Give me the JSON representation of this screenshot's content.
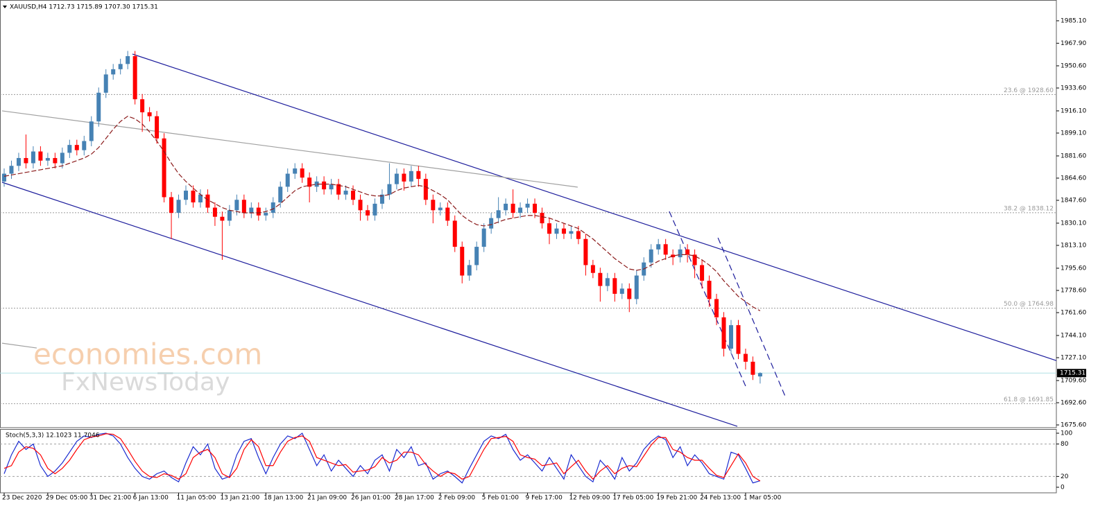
{
  "chart_data": {
    "type": "candlestick",
    "title": "XAUUSD,H4  1712.73 1715.89 1707.30 1715.31",
    "categories": [
      "23 Dec 2020",
      null,
      null,
      null,
      null,
      null,
      "29 Dec 05:00",
      null,
      null,
      null,
      null,
      null,
      "31 Dec 21:00",
      null,
      null,
      null,
      null,
      null,
      "6 Jan 13:00",
      null,
      null,
      null,
      null,
      null,
      "11 Jan 05:00",
      null,
      null,
      null,
      null,
      null,
      "13 Jan 21:00",
      null,
      null,
      null,
      null,
      null,
      "18 Jan 13:00",
      null,
      null,
      null,
      null,
      null,
      "21 Jan 09:00",
      null,
      null,
      null,
      null,
      null,
      "26 Jan 01:00",
      null,
      null,
      null,
      null,
      null,
      "28 Jan 17:00",
      null,
      null,
      null,
      null,
      null,
      "2 Feb 09:00",
      null,
      null,
      null,
      null,
      null,
      "5 Feb 01:00",
      null,
      null,
      null,
      null,
      null,
      "9 Feb 17:00",
      null,
      null,
      null,
      null,
      null,
      "12 Feb 09:00",
      null,
      null,
      null,
      null,
      null,
      "17 Feb 05:00",
      null,
      null,
      null,
      null,
      null,
      "19 Feb 21:00",
      null,
      null,
      null,
      null,
      null,
      "24 Feb 13:00",
      null,
      null,
      null,
      null,
      null,
      "1 Mar 05:00",
      null,
      null
    ],
    "open": [
      1862,
      1868,
      1874,
      1880,
      1876,
      1885,
      1878,
      1880,
      1876,
      1884,
      1890,
      1886,
      1893,
      1908,
      1930,
      1944,
      1948,
      1952,
      1958,
      1925,
      1915,
      1912,
      1895,
      1850,
      1838,
      1848,
      1855,
      1846,
      1852,
      1842,
      1835,
      1832,
      1840,
      1848,
      1838,
      1842,
      1836,
      1838,
      1846,
      1858,
      1868,
      1872,
      1865,
      1858,
      1862,
      1856,
      1860,
      1852,
      1855,
      1848,
      1840,
      1836,
      1845,
      1852,
      1860,
      1868,
      1862,
      1870,
      1864,
      1848,
      1840,
      1842,
      1832,
      1812,
      1790,
      1798,
      1812,
      1826,
      1834,
      1840,
      1845,
      1838,
      1842,
      1845,
      1838,
      1830,
      1822,
      1826,
      1822,
      1824,
      1818,
      1798,
      1792,
      1782,
      1788,
      1776,
      1780,
      1772,
      1790,
      1800,
      1810,
      1814,
      1806,
      1804,
      1810,
      1806,
      1798,
      1786,
      1772,
      1758,
      1734,
      1752,
      1730,
      1724,
      1712.73
    ],
    "high": [
      1872,
      1878,
      1884,
      1898,
      1889,
      1889,
      1884,
      1884,
      1888,
      1894,
      1894,
      1897,
      1912,
      1934,
      1948,
      1952,
      1956,
      1962,
      1962,
      1929,
      1919,
      1916,
      1899,
      1854,
      1852,
      1859,
      1859,
      1856,
      1856,
      1846,
      1839,
      1844,
      1852,
      1852,
      1846,
      1846,
      1842,
      1850,
      1862,
      1872,
      1876,
      1876,
      1869,
      1866,
      1866,
      1864,
      1864,
      1859,
      1859,
      1852,
      1844,
      1849,
      1856,
      1876,
      1872,
      1872,
      1874,
      1874,
      1868,
      1852,
      1846,
      1846,
      1836,
      1816,
      1802,
      1816,
      1830,
      1838,
      1850,
      1849,
      1856,
      1846,
      1849,
      1849,
      1842,
      1834,
      1830,
      1830,
      1828,
      1828,
      1822,
      1802,
      1796,
      1792,
      1792,
      1784,
      1784,
      1794,
      1804,
      1814,
      1818,
      1818,
      1810,
      1814,
      1814,
      1810,
      1802,
      1790,
      1776,
      1762,
      1756,
      1756,
      1734,
      1728,
      1715.89
    ],
    "low": [
      1858,
      1864,
      1870,
      1872,
      1872,
      1874,
      1874,
      1872,
      1872,
      1880,
      1882,
      1882,
      1889,
      1904,
      1926,
      1940,
      1944,
      1948,
      1921,
      1900,
      1908,
      1891,
      1846,
      1818,
      1834,
      1844,
      1842,
      1842,
      1838,
      1828,
      1802,
      1828,
      1836,
      1834,
      1834,
      1832,
      1832,
      1834,
      1842,
      1854,
      1864,
      1861,
      1846,
      1854,
      1852,
      1852,
      1848,
      1848,
      1844,
      1832,
      1832,
      1832,
      1841,
      1848,
      1856,
      1855,
      1858,
      1858,
      1844,
      1830,
      1836,
      1828,
      1808,
      1784,
      1786,
      1794,
      1808,
      1822,
      1830,
      1836,
      1834,
      1834,
      1838,
      1834,
      1826,
      1814,
      1818,
      1818,
      1818,
      1814,
      1790,
      1788,
      1770,
      1778,
      1770,
      1772,
      1762,
      1768,
      1786,
      1796,
      1806,
      1802,
      1798,
      1800,
      1800,
      1788,
      1780,
      1766,
      1752,
      1728,
      1730,
      1726,
      1718,
      1710,
      1707.3
    ],
    "close": [
      1868,
      1874,
      1880,
      1876,
      1885,
      1878,
      1880,
      1876,
      1884,
      1890,
      1886,
      1893,
      1908,
      1930,
      1944,
      1948,
      1952,
      1958,
      1925,
      1915,
      1912,
      1895,
      1850,
      1838,
      1848,
      1855,
      1846,
      1852,
      1842,
      1835,
      1832,
      1840,
      1848,
      1838,
      1842,
      1836,
      1838,
      1846,
      1858,
      1868,
      1872,
      1865,
      1858,
      1862,
      1856,
      1860,
      1852,
      1855,
      1848,
      1840,
      1836,
      1845,
      1852,
      1860,
      1868,
      1862,
      1870,
      1864,
      1848,
      1840,
      1842,
      1832,
      1812,
      1790,
      1798,
      1812,
      1826,
      1834,
      1840,
      1845,
      1838,
      1842,
      1845,
      1838,
      1830,
      1822,
      1826,
      1822,
      1824,
      1818,
      1798,
      1792,
      1782,
      1788,
      1776,
      1780,
      1772,
      1790,
      1800,
      1810,
      1814,
      1806,
      1804,
      1810,
      1806,
      1798,
      1786,
      1772,
      1758,
      1734,
      1752,
      1730,
      1724,
      1714,
      1715.31
    ],
    "up_color": "#4682b4",
    "down_color": "#ff0000",
    "ylim": [
      1673.5,
      2001.0
    ],
    "yticks": [
      {
        "value": 1985.1,
        "label": "1985.10"
      },
      {
        "value": 1967.9,
        "label": "1967.90"
      },
      {
        "value": 1950.6,
        "label": "1950.60"
      },
      {
        "value": 1933.6,
        "label": "1933.60"
      },
      {
        "value": 1916.1,
        "label": "1916.10"
      },
      {
        "value": 1899.1,
        "label": "1899.10"
      },
      {
        "value": 1881.6,
        "label": "1881.60"
      },
      {
        "value": 1864.6,
        "label": "1864.60"
      },
      {
        "value": 1847.6,
        "label": "1847.60"
      },
      {
        "value": 1830.1,
        "label": "1830.10"
      },
      {
        "value": 1813.1,
        "label": "1813.10"
      },
      {
        "value": 1795.6,
        "label": "1795.60"
      },
      {
        "value": 1778.6,
        "label": "1778.60"
      },
      {
        "value": 1761.6,
        "label": "1761.60"
      },
      {
        "value": 1744.1,
        "label": "1744.10"
      },
      {
        "value": 1727.1,
        "label": "1727.10"
      },
      {
        "value": 1709.6,
        "label": "1709.60"
      },
      {
        "value": 1692.6,
        "label": "1692.60"
      },
      {
        "value": 1675.6,
        "label": "1675.60"
      }
    ],
    "ma": {
      "color": "#8b1a1a",
      "values": [
        1866,
        1867,
        1868,
        1869,
        1870,
        1871,
        1872,
        1873,
        1874,
        1876,
        1878,
        1880,
        1883,
        1888,
        1895,
        1902,
        1908,
        1912,
        1910,
        1906,
        1900,
        1893,
        1885,
        1876,
        1868,
        1862,
        1857,
        1852,
        1848,
        1845,
        1842,
        1840,
        1839,
        1838,
        1838,
        1838,
        1839,
        1841,
        1845,
        1850,
        1855,
        1858,
        1859,
        1860,
        1860,
        1860,
        1859,
        1858,
        1856,
        1854,
        1852,
        1851,
        1851,
        1852,
        1855,
        1857,
        1858,
        1859,
        1858,
        1855,
        1852,
        1848,
        1842,
        1836,
        1832,
        1829,
        1828,
        1829,
        1831,
        1833,
        1834,
        1835,
        1836,
        1836,
        1835,
        1834,
        1832,
        1830,
        1828,
        1826,
        1822,
        1818,
        1813,
        1808,
        1803,
        1799,
        1795,
        1794,
        1795,
        1798,
        1801,
        1803,
        1805,
        1806,
        1806,
        1805,
        1802,
        1798,
        1793,
        1786,
        1780,
        1774,
        1770,
        1766,
        1763
      ]
    },
    "levels": [
      {
        "value": 1928.6,
        "label": "23.6 @ 1928.60"
      },
      {
        "value": 1838.12,
        "label": "38.2 @ 1838.12"
      },
      {
        "value": 1764.98,
        "label": "50.0 @ 1764.98"
      },
      {
        "value": 1691.85,
        "label": "61.8 @ 1691.85"
      }
    ],
    "level_color": "#9a9a9a",
    "last_price": 1715.31,
    "last_price_color": "#b0e0e6",
    "trendlines": [
      {
        "x": [
          17.65,
          145.0
        ],
        "y": [
          1959.6,
          1724.4
        ],
        "color": "#1c1c9c",
        "dashed": false
      },
      {
        "x": [
          -0.29,
          100.86
        ],
        "y": [
          1861.4,
          1674.5
        ],
        "color": "#1c1c9c",
        "dashed": false
      },
      {
        "x": [
          -0.29,
          78.9
        ],
        "y": [
          1916.1,
          1857.7
        ],
        "color": "#a0a0a0",
        "dashed": false
      },
      {
        "x": [
          -0.29,
          4.48
        ],
        "y": [
          1738.2,
          1734.5
        ],
        "color": "#a0a0a0",
        "dashed": false
      },
      {
        "x": [
          91.5,
          102.0
        ],
        "y": [
          1839.1,
          1705.3
        ],
        "color": "#1c1c9c",
        "dashed": true
      },
      {
        "x": [
          98.2,
          107.5
        ],
        "y": [
          1818.9,
          1696.8
        ],
        "color": "#1c1c9c",
        "dashed": true
      }
    ],
    "watermark": [
      "economies.com",
      "FxNewsToday"
    ],
    "indicator": {
      "type": "line",
      "title": "Stoch(5,3,3) 12.1023 11.7046",
      "ylim": [
        -10.3,
        107.7
      ],
      "yticks": [
        0,
        20,
        80,
        100
      ],
      "level_lines": [
        20,
        80
      ],
      "series": [
        {
          "color": "#1a2bd0",
          "values": [
            25,
            60,
            85,
            70,
            80,
            40,
            20,
            30,
            45,
            65,
            85,
            95,
            92,
            98,
            100,
            95,
            80,
            55,
            35,
            20,
            15,
            25,
            30,
            18,
            10,
            45,
            75,
            60,
            80,
            35,
            15,
            20,
            60,
            85,
            90,
            55,
            25,
            55,
            80,
            95,
            90,
            100,
            70,
            40,
            60,
            30,
            50,
            35,
            20,
            40,
            25,
            50,
            60,
            30,
            70,
            55,
            75,
            40,
            45,
            15,
            25,
            30,
            20,
            8,
            35,
            60,
            85,
            95,
            90,
            98,
            70,
            50,
            60,
            45,
            30,
            55,
            35,
            15,
            60,
            40,
            20,
            10,
            50,
            35,
            15,
            55,
            30,
            45,
            70,
            85,
            95,
            88,
            55,
            75,
            40,
            60,
            45,
            25,
            20,
            15,
            65,
            60,
            35,
            8,
            12.1023
          ]
        },
        {
          "color": "#ff0000",
          "values": [
            35,
            40,
            65,
            75,
            72,
            60,
            35,
            25,
            35,
            50,
            70,
            88,
            93,
            95,
            99,
            98,
            90,
            70,
            48,
            30,
            20,
            18,
            25,
            22,
            15,
            25,
            55,
            65,
            70,
            55,
            25,
            18,
            35,
            70,
            88,
            75,
            40,
            40,
            65,
            85,
            92,
            95,
            85,
            55,
            50,
            45,
            40,
            42,
            28,
            30,
            32,
            38,
            55,
            45,
            50,
            65,
            65,
            60,
            42,
            30,
            20,
            28,
            25,
            15,
            20,
            45,
            70,
            90,
            92,
            94,
            85,
            60,
            55,
            52,
            40,
            42,
            45,
            25,
            38,
            50,
            30,
            15,
            30,
            40,
            25,
            35,
            40,
            38,
            58,
            78,
            92,
            92,
            70,
            65,
            55,
            50,
            50,
            35,
            22,
            18,
            40,
            62,
            45,
            20,
            11.7046
          ]
        }
      ]
    }
  }
}
